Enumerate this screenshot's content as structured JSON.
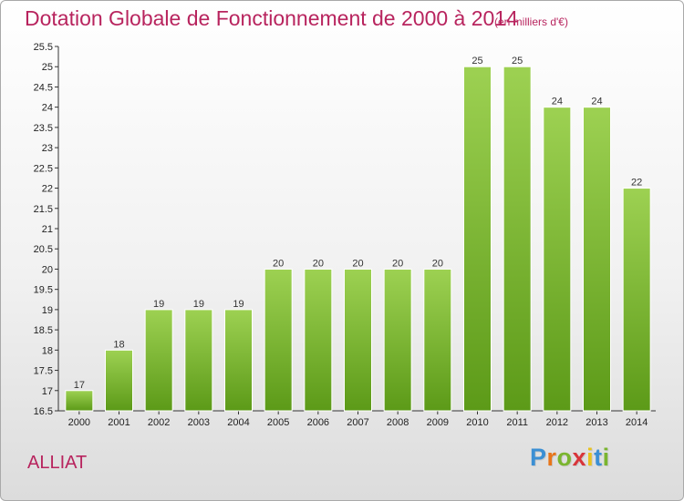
{
  "title": "Dotation Globale de Fonctionnement de 2000 à 2014",
  "subtitle": "(en milliers d'€)",
  "commune": "ALLIAT",
  "logo": {
    "letters": [
      "P",
      "r",
      "o",
      "x",
      "i",
      "t",
      "i"
    ],
    "colors": [
      "#3b8fd4",
      "#e8751a",
      "#7ab52f",
      "#d8353a",
      "#e8c21e",
      "#3b8fd4",
      "#7ab52f"
    ]
  },
  "colors": {
    "bar_top": "#9dd152",
    "bar_bottom": "#5c9a18",
    "title": "#b8245e"
  },
  "chart_data": {
    "type": "bar",
    "categories": [
      "2000",
      "2001",
      "2002",
      "2003",
      "2004",
      "2005",
      "2006",
      "2007",
      "2008",
      "2009",
      "2010",
      "2011",
      "2012",
      "2013",
      "2014"
    ],
    "values": [
      17,
      18,
      19,
      19,
      19,
      20,
      20,
      20,
      20,
      20,
      25,
      25,
      24,
      24,
      22
    ],
    "value_labels": [
      "17",
      "18",
      "19",
      "19",
      "19",
      "20",
      "20",
      "20",
      "20",
      "20",
      "25",
      "25",
      "24",
      "24",
      "22"
    ],
    "ylim": [
      16.5,
      25.5
    ],
    "yticks": [
      "16.5",
      "17",
      "17.5",
      "18",
      "18.5",
      "19",
      "19.5",
      "20",
      "20.5",
      "21",
      "21.5",
      "22",
      "22.5",
      "23",
      "23.5",
      "24",
      "24.5",
      "25",
      "25.5"
    ],
    "grid": false,
    "legend": "none"
  }
}
